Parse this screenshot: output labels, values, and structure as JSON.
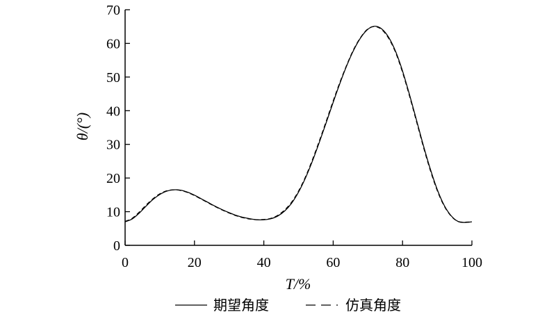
{
  "chart_data": {
    "type": "line",
    "xlabel": "T/%",
    "ylabel": "θ/(°)",
    "xlim": [
      0,
      100
    ],
    "ylim": [
      0,
      70
    ],
    "xticks": [
      0,
      20,
      40,
      60,
      80,
      100
    ],
    "yticks": [
      0,
      10,
      20,
      30,
      40,
      50,
      60,
      70
    ],
    "grid": false,
    "legend_position": "bottom",
    "series": [
      {
        "name": "期望角度",
        "style": "solid",
        "x": [
          0,
          2,
          4,
          6,
          8,
          10,
          12,
          14,
          16,
          18,
          20,
          22,
          24,
          26,
          28,
          30,
          32,
          34,
          36,
          38,
          40,
          42,
          44,
          46,
          48,
          50,
          52,
          54,
          56,
          58,
          60,
          62,
          64,
          66,
          68,
          70,
          72,
          74,
          76,
          78,
          80,
          82,
          84,
          86,
          88,
          90,
          92,
          94,
          96,
          98,
          100
        ],
        "y": [
          7.0,
          7.8,
          9.5,
          11.6,
          13.6,
          15.1,
          16.1,
          16.5,
          16.4,
          15.8,
          14.9,
          13.8,
          12.7,
          11.6,
          10.6,
          9.7,
          8.9,
          8.3,
          7.9,
          7.6,
          7.6,
          7.9,
          8.7,
          10.2,
          12.5,
          15.8,
          20.0,
          25.0,
          30.6,
          36.5,
          42.5,
          48.3,
          53.6,
          58.2,
          61.8,
          64.2,
          65.1,
          64.3,
          61.8,
          57.6,
          51.8,
          44.8,
          37.3,
          29.7,
          22.7,
          16.6,
          11.9,
          8.8,
          7.1,
          6.8,
          7.0
        ]
      },
      {
        "name": "仿真角度",
        "style": "dashed",
        "x": [
          0,
          2,
          4,
          6,
          8,
          10,
          12,
          14,
          16,
          18,
          20,
          22,
          24,
          26,
          28,
          30,
          32,
          34,
          36,
          38,
          40,
          42,
          44,
          46,
          48,
          50,
          52,
          54,
          56,
          58,
          60,
          62,
          64,
          66,
          68,
          70,
          72,
          74,
          76,
          78,
          80,
          82,
          84,
          86,
          88,
          90,
          92,
          94,
          96,
          98,
          100
        ],
        "y": [
          7.1,
          8.0,
          9.8,
          11.9,
          13.8,
          15.3,
          16.2,
          16.5,
          16.3,
          15.7,
          14.8,
          13.7,
          12.6,
          11.5,
          10.5,
          9.6,
          8.8,
          8.2,
          7.8,
          7.6,
          7.7,
          8.0,
          8.9,
          10.5,
          12.8,
          16.1,
          20.3,
          25.4,
          31.0,
          36.9,
          42.9,
          48.6,
          53.8,
          58.4,
          61.9,
          64.3,
          65.0,
          64.1,
          61.5,
          57.3,
          51.4,
          44.4,
          36.9,
          29.3,
          22.3,
          16.3,
          11.7,
          8.7,
          7.1,
          6.9,
          7.0
        ]
      }
    ]
  }
}
